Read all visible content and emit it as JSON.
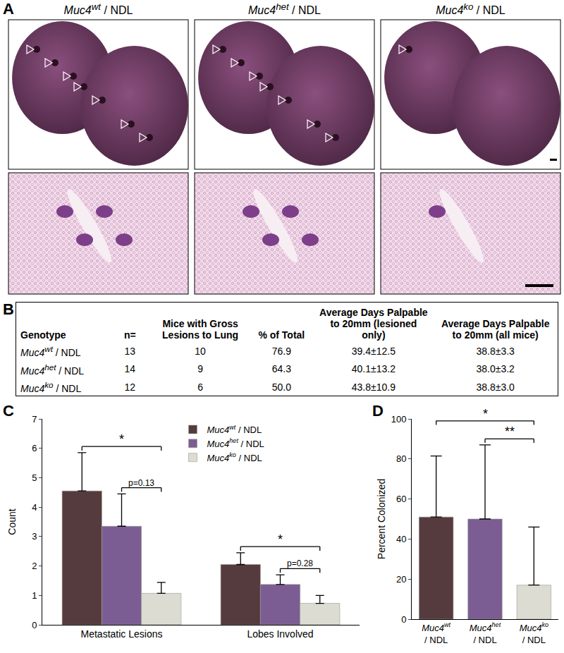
{
  "genotypes": [
    {
      "name": "Muc4wt / NDL",
      "gene": "Muc4",
      "allele": "wt"
    },
    {
      "name": "Muc4het / NDL",
      "gene": "Muc4",
      "allele": "het"
    },
    {
      "name": "Muc4ko / NDL",
      "gene": "Muc4",
      "allele": "ko"
    }
  ],
  "panel_A": {
    "label": "A",
    "columns": [
      "Muc4wt / NDL",
      "Muc4het / NDL",
      "Muc4ko / NDL"
    ]
  },
  "panel_B": {
    "label": "B",
    "header": [
      "Genotype",
      "n=",
      "Mice with Gross Lesions to Lung",
      "% of Total",
      "Average Days Palpable to 20mm (lesioned only)",
      "Average Days Palpable to 20mm (all mice)"
    ],
    "rows": [
      [
        "Muc4wt / NDL",
        "13",
        "10",
        "76.9",
        "39.4±12.5",
        "38.8±3.3"
      ],
      [
        "Muc4het / NDL",
        "14",
        "9",
        "64.3",
        "40.1±13.2",
        "38.0±3.2"
      ],
      [
        "Muc4ko / NDL",
        "12",
        "6",
        "50.0",
        "43.8±10.9",
        "38.8±3.0"
      ]
    ]
  },
  "chart_data": [
    {
      "panel": "C",
      "type": "bar",
      "categories": [
        "Metastatic Lesions",
        "Lobes Involved"
      ],
      "y_label": "Count",
      "ylim": [
        0,
        7
      ],
      "yticks": [
        0,
        1,
        2,
        3,
        4,
        5,
        6,
        7
      ],
      "legend": "top",
      "series": [
        {
          "name": "Muc4wt / NDL",
          "color": "#553b3d",
          "values": [
            4.55,
            2.05
          ],
          "errors": [
            1.3,
            0.4
          ]
        },
        {
          "name": "Muc4het / NDL",
          "color": "#7b5d93",
          "values": [
            3.35,
            1.37
          ],
          "errors": [
            1.1,
            0.33
          ]
        },
        {
          "name": "Muc4ko / NDL",
          "color": "#dcdcd2",
          "values": [
            1.07,
            0.73
          ],
          "errors": [
            0.37,
            0.27
          ]
        }
      ],
      "comparisons": [
        {
          "category": "Metastatic Lesions",
          "pair": [
            "Muc4wt / NDL",
            "Muc4ko / NDL"
          ],
          "label": "*"
        },
        {
          "category": "Metastatic Lesions",
          "pair": [
            "Muc4het / NDL",
            "Muc4ko / NDL"
          ],
          "label": "p=0.13"
        },
        {
          "category": "Lobes Involved",
          "pair": [
            "Muc4wt / NDL",
            "Muc4ko / NDL"
          ],
          "label": "*"
        },
        {
          "category": "Lobes Involved",
          "pair": [
            "Muc4het / NDL",
            "Muc4ko / NDL"
          ],
          "label": "p=0.28"
        }
      ]
    },
    {
      "panel": "D",
      "type": "bar",
      "categories": [
        "Muc4wt / NDL",
        "Muc4het / NDL",
        "Muc4ko / NDL"
      ],
      "values": [
        51,
        50,
        17
      ],
      "errors": [
        30.5,
        37,
        29
      ],
      "colors": [
        "#553b3d",
        "#7b5d93",
        "#dcdcd2"
      ],
      "y_label": "Percent Colonized",
      "ylim": [
        0,
        100
      ],
      "yticks": [
        0,
        20,
        40,
        60,
        80,
        100
      ],
      "comparisons": [
        {
          "pair": [
            "Muc4wt / NDL",
            "Muc4ko / NDL"
          ],
          "label": "*"
        },
        {
          "pair": [
            "Muc4het / NDL",
            "Muc4ko / NDL"
          ],
          "label": "**"
        }
      ]
    }
  ]
}
